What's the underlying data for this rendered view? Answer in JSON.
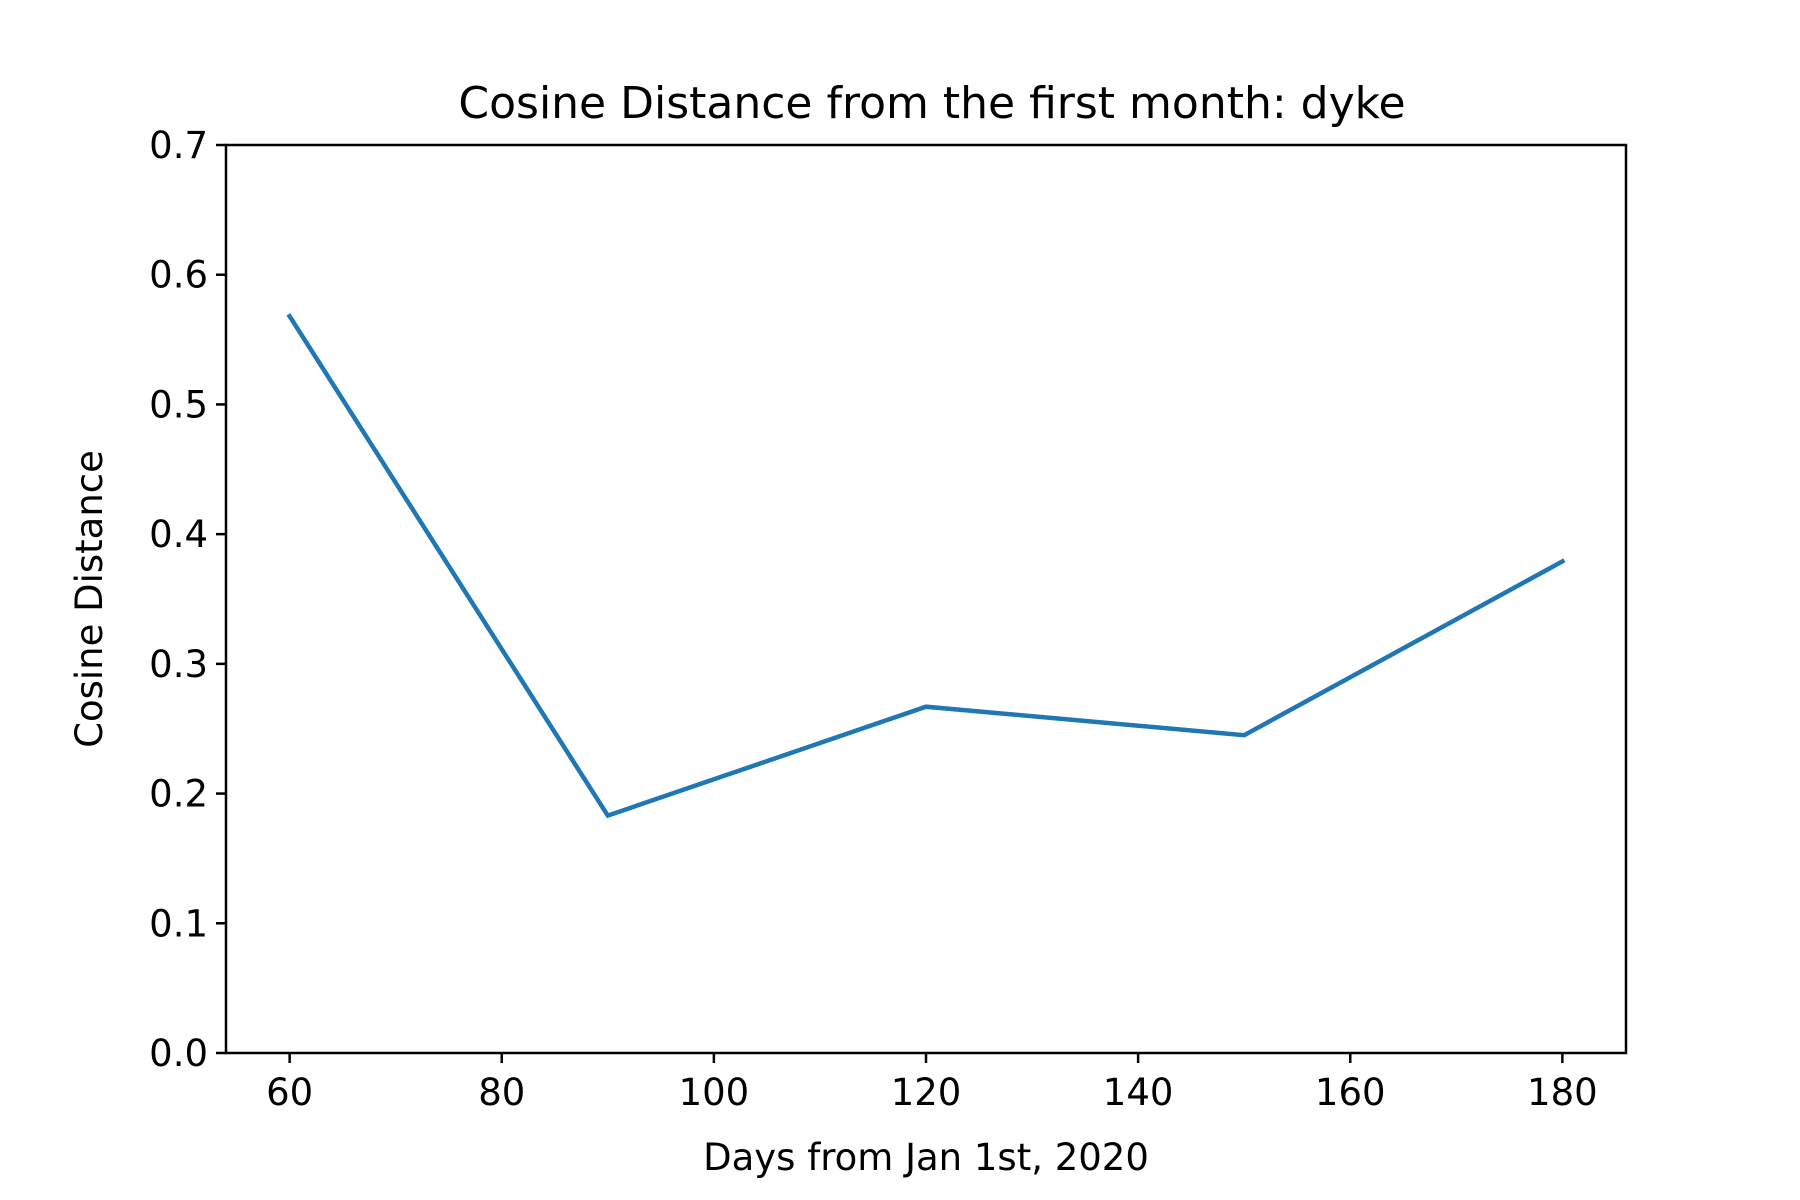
{
  "chart_data": {
    "type": "line",
    "title": "Cosine Distance from the first month: dyke",
    "xlabel": "Days from Jan 1st, 2020",
    "ylabel": "Cosine Distance",
    "x": [
      60,
      90,
      120,
      150,
      180
    ],
    "series": [
      {
        "values": [
          0.568,
          0.183,
          0.267,
          0.245,
          0.379
        ],
        "color": "#1f77b4"
      }
    ],
    "xlim": [
      54,
      186
    ],
    "ylim": [
      0,
      0.7
    ],
    "xticks": [
      60,
      80,
      100,
      120,
      140,
      160,
      180
    ],
    "xtick_labels": [
      "60",
      "80",
      "100",
      "120",
      "140",
      "160",
      "180"
    ],
    "yticks": [
      0,
      0.1,
      0.2,
      0.3,
      0.4,
      0.5,
      0.6,
      0.7
    ],
    "ytick_labels": [
      "0.0",
      "0.1",
      "0.2",
      "0.3",
      "0.4",
      "0.5",
      "0.6",
      "0.7"
    ],
    "grid": false,
    "legend": "none"
  }
}
